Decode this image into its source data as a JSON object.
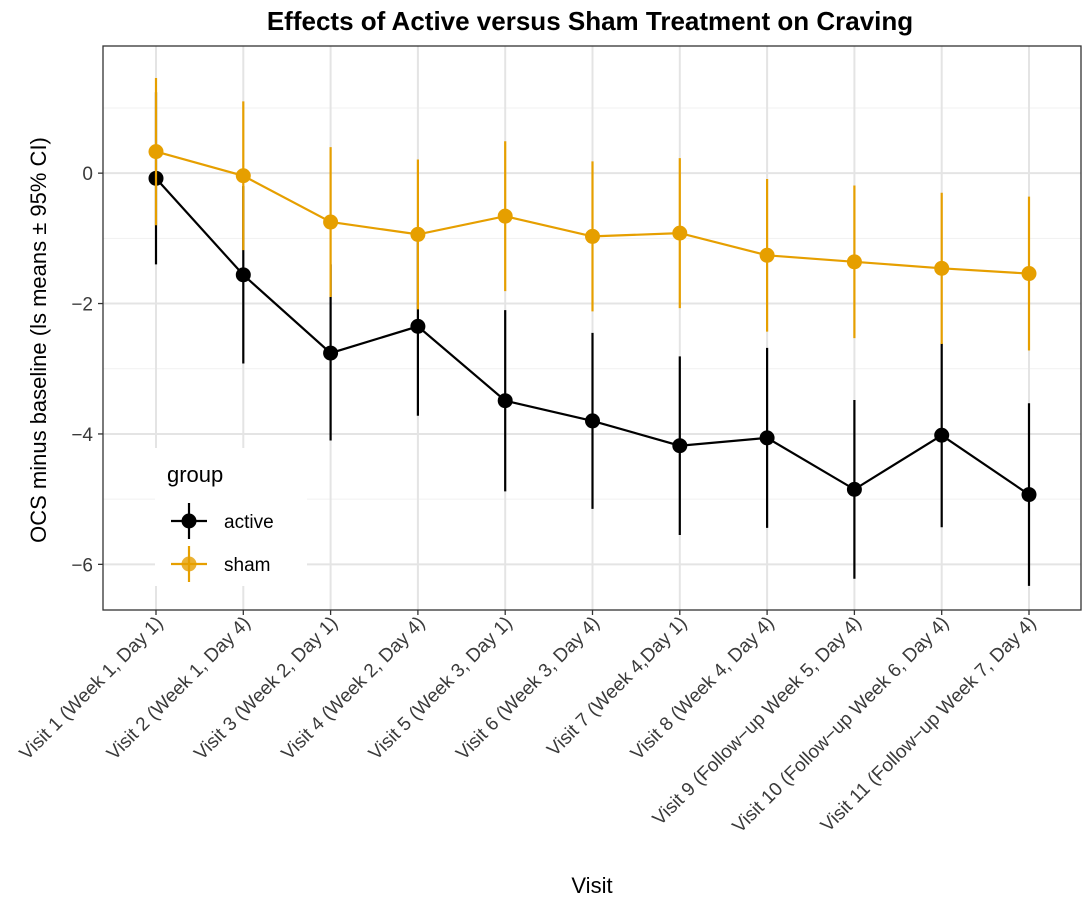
{
  "chart_data": {
    "type": "line",
    "title": "Effects of Active versus Sham Treatment on Craving",
    "xlabel": "Visit",
    "ylabel": "OCS minus baseline (ls means ± 95% CI)",
    "ylim": [
      -6.7,
      1.95
    ],
    "yticks": [
      0,
      -2,
      -4,
      -6
    ],
    "ytick_labels": [
      "0",
      "−2",
      "−4",
      "−6"
    ],
    "grid": true,
    "legend_position": "bottom-left",
    "legend_title": "group",
    "categories": [
      "Visit 1 (Week 1, Day 1)",
      "Visit 2 (Week 1, Day 4)",
      "Visit 3 (Week 2, Day 1)",
      "Visit 4 (Week 2, Day 4)",
      "Visit 5 (Week 3, Day 1)",
      "Visit 6 (Week 3, Day 4)",
      "Visit 7 (Week 4,Day 1)",
      "Visit 8 (Week 4, Day 4)",
      "Visit 9 (Follow−up Week 5, Day 4)",
      "Visit 10 (Follow−up Week 6, Day 4)",
      "Visit 11 (Follow−up Week 7, Day 4)"
    ],
    "series": [
      {
        "name": "active",
        "color": "#000000",
        "values": [
          -0.08,
          -1.56,
          -2.76,
          -2.35,
          -3.49,
          -3.8,
          -4.18,
          -4.06,
          -4.85,
          -4.02,
          -4.93
        ],
        "lower": [
          -1.4,
          -2.92,
          -4.1,
          -3.72,
          -4.88,
          -5.15,
          -5.55,
          -5.44,
          -6.22,
          -5.43,
          -6.33
        ],
        "upper": [
          1.24,
          -0.2,
          -1.4,
          -0.97,
          -2.1,
          -2.45,
          -2.81,
          -2.68,
          -3.48,
          -2.61,
          -3.53
        ]
      },
      {
        "name": "sham",
        "color": "#E69F00",
        "values": [
          0.33,
          -0.04,
          -0.75,
          -0.94,
          -0.66,
          -0.97,
          -0.92,
          -1.26,
          -1.36,
          -1.46,
          -1.54
        ],
        "lower": [
          -0.8,
          -1.18,
          -1.9,
          -2.09,
          -1.81,
          -2.12,
          -2.07,
          -2.43,
          -2.53,
          -2.62,
          -2.72
        ],
        "upper": [
          1.46,
          1.1,
          0.4,
          0.21,
          0.49,
          0.18,
          0.23,
          -0.09,
          -0.19,
          -0.3,
          -0.36
        ]
      }
    ]
  }
}
